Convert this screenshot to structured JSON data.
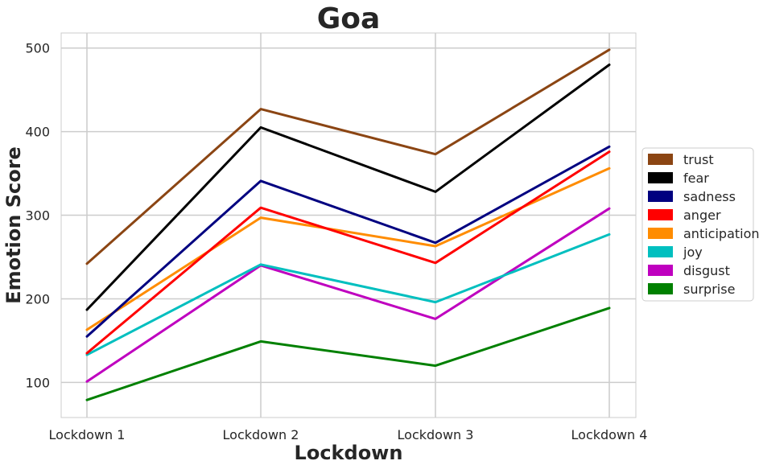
{
  "chart_data": {
    "type": "line",
    "title": "Goa",
    "xlabel": "Lockdown",
    "ylabel": "Emotion Score",
    "categories": [
      "Lockdown 1",
      "Lockdown 2",
      "Lockdown 3",
      "Lockdown 4"
    ],
    "ylim": [
      58,
      518
    ],
    "yticks": [
      100,
      200,
      300,
      400,
      500
    ],
    "grid": true,
    "legend_position": "right",
    "series": [
      {
        "name": "trust",
        "color": "#8B4513",
        "values": [
          242,
          427,
          373,
          498
        ]
      },
      {
        "name": "fear",
        "color": "#000000",
        "values": [
          187,
          405,
          328,
          480
        ]
      },
      {
        "name": "sadness",
        "color": "#000080",
        "values": [
          155,
          341,
          267,
          382
        ]
      },
      {
        "name": "anger",
        "color": "#FF0000",
        "values": [
          135,
          309,
          243,
          376
        ]
      },
      {
        "name": "anticipation",
        "color": "#FF8C00",
        "values": [
          163,
          297,
          263,
          356
        ]
      },
      {
        "name": "joy",
        "color": "#00BFBF",
        "values": [
          133,
          241,
          196,
          277
        ]
      },
      {
        "name": "disgust",
        "color": "#BF00BF",
        "values": [
          101,
          240,
          176,
          308
        ]
      },
      {
        "name": "surprise",
        "color": "#008000",
        "values": [
          79,
          149,
          120,
          189
        ]
      }
    ]
  }
}
